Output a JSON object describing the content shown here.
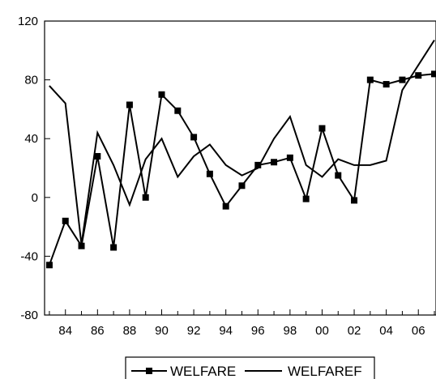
{
  "chart_data": {
    "type": "line",
    "title": "",
    "xlabel": "",
    "ylabel": "",
    "x": [
      1983,
      1984,
      1985,
      1986,
      1987,
      1988,
      1989,
      1990,
      1991,
      1992,
      1993,
      1994,
      1995,
      1996,
      1997,
      1998,
      1999,
      2000,
      2001,
      2002,
      2003,
      2004,
      2005,
      2006,
      2007
    ],
    "x_tick_labels": [
      "84",
      "86",
      "88",
      "90",
      "92",
      "94",
      "96",
      "98",
      "00",
      "02",
      "04",
      "06"
    ],
    "x_tick_values": [
      1984,
      1986,
      1988,
      1990,
      1992,
      1994,
      1996,
      1998,
      2000,
      2002,
      2004,
      2006
    ],
    "y_ticks": [
      -80,
      -40,
      0,
      40,
      80,
      120
    ],
    "ylim": [
      -80,
      120
    ],
    "xlim": [
      1982.7,
      2007.1
    ],
    "grid": false,
    "legend_position": "bottom-center",
    "series": [
      {
        "name": "WELFARE",
        "color": "#000000",
        "marker": "square",
        "values": [
          -46,
          -16,
          -33,
          28,
          -34,
          63,
          0,
          70,
          59,
          41,
          16,
          -6,
          8,
          22,
          24,
          27,
          -1,
          47,
          15,
          -2,
          80,
          77,
          80,
          83,
          84
        ]
      },
      {
        "name": "WELFAREF",
        "color": "#000000",
        "marker": "none",
        "values": [
          76,
          64,
          -32,
          44,
          22,
          -5,
          26,
          40,
          14,
          28,
          36,
          22,
          15,
          20,
          40,
          55,
          22,
          14,
          26,
          22,
          22,
          25,
          73,
          90,
          107
        ]
      }
    ]
  }
}
